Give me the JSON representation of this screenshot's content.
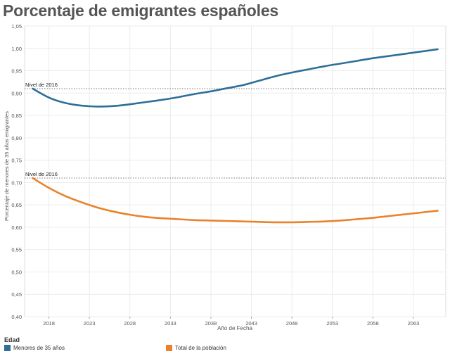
{
  "title": "Porcentaje de emigrantes españoles",
  "colors": {
    "series1": "#2e6f97",
    "series2": "#e9822a",
    "grid": "#ececec",
    "axis": "#999999",
    "text": "#555555"
  },
  "legend": {
    "title": "Edad",
    "items": [
      {
        "label": "Menores de 35 años",
        "color": "#2e6f97"
      },
      {
        "label": "Total de la población",
        "color": "#e9822a"
      }
    ]
  },
  "chart_data": {
    "type": "line",
    "xlabel": "Año de Fecha",
    "ylabel": "Porcentaje de menores de 35 años emigrantes",
    "xlim": [
      2015,
      2067
    ],
    "ylim": [
      0.4,
      1.05
    ],
    "x_ticks": [
      2018,
      2023,
      2028,
      2033,
      2038,
      2043,
      2048,
      2053,
      2058,
      2063
    ],
    "y_ticks": [
      "0,40",
      "0,45",
      "0,50",
      "0,55",
      "0,60",
      "0,65",
      "0,70",
      "0,75",
      "0,80",
      "0,85",
      "0,90",
      "0,95",
      "1,00",
      "1,05"
    ],
    "grid": true,
    "reference_lines": [
      {
        "label": "Nivel de 2016",
        "value": 0.91
      },
      {
        "label": "Nivel de 2016",
        "value": 0.71
      }
    ],
    "series": [
      {
        "name": "Menores de 35 años",
        "x": [
          2016,
          2018,
          2020,
          2022,
          2024,
          2026,
          2028,
          2030,
          2032,
          2034,
          2036,
          2038,
          2040,
          2042,
          2044,
          2046,
          2048,
          2050,
          2052,
          2054,
          2056,
          2058,
          2060,
          2062,
          2064,
          2066
        ],
        "y": [
          0.91,
          0.89,
          0.878,
          0.872,
          0.87,
          0.871,
          0.875,
          0.88,
          0.885,
          0.891,
          0.898,
          0.904,
          0.911,
          0.918,
          0.928,
          0.938,
          0.946,
          0.953,
          0.96,
          0.966,
          0.972,
          0.978,
          0.983,
          0.988,
          0.993,
          0.998
        ]
      },
      {
        "name": "Total de la población",
        "x": [
          2016,
          2018,
          2020,
          2022,
          2024,
          2026,
          2028,
          2030,
          2032,
          2034,
          2036,
          2038,
          2040,
          2042,
          2044,
          2046,
          2048,
          2050,
          2052,
          2054,
          2056,
          2058,
          2060,
          2062,
          2064,
          2066
        ],
        "y": [
          0.71,
          0.688,
          0.67,
          0.656,
          0.644,
          0.635,
          0.628,
          0.623,
          0.62,
          0.618,
          0.616,
          0.615,
          0.614,
          0.613,
          0.612,
          0.611,
          0.611,
          0.612,
          0.613,
          0.615,
          0.618,
          0.621,
          0.625,
          0.629,
          0.633,
          0.637
        ]
      }
    ]
  }
}
